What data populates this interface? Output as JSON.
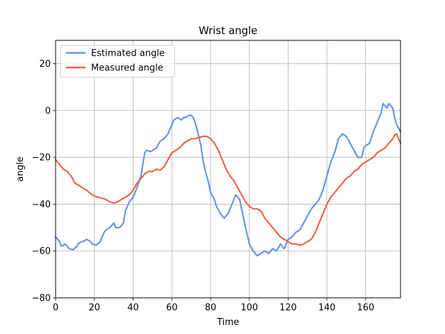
{
  "chart_data": {
    "type": "line",
    "title": "Wrist angle",
    "xlabel": "Time",
    "ylabel": "angle",
    "xlim": [
      0,
      178
    ],
    "ylim": [
      -80,
      30
    ],
    "xticks": [
      0,
      20,
      40,
      60,
      80,
      100,
      120,
      140,
      160
    ],
    "yticks": [
      -80,
      -60,
      -40,
      -20,
      0,
      20
    ],
    "grid": true,
    "legend_position": "top-left",
    "series": [
      {
        "name": "Estimated angle",
        "color": "#6495ed",
        "x": [
          0,
          2,
          3,
          5,
          7,
          9,
          11,
          12,
          14,
          16,
          18,
          19,
          21,
          23,
          25,
          26,
          28,
          30,
          31,
          33,
          35,
          36,
          38,
          40,
          42,
          44,
          46,
          47,
          49,
          50,
          52,
          54,
          56,
          58,
          59,
          61,
          63,
          64,
          65,
          66,
          67,
          68,
          69,
          70,
          71,
          72,
          73,
          75,
          76,
          77,
          79,
          80,
          82,
          83,
          85,
          87,
          89,
          91,
          93,
          95,
          97,
          98,
          100,
          102,
          104,
          106,
          108,
          110,
          112,
          114,
          116,
          118,
          120,
          122,
          124,
          126,
          128,
          130,
          132,
          134,
          136,
          138,
          140,
          142,
          144,
          146,
          148,
          150,
          152,
          154,
          156,
          158,
          159,
          160,
          162,
          164,
          166,
          168,
          169,
          170,
          171,
          172,
          173,
          174,
          175,
          176,
          178
        ],
        "y": [
          -54,
          -56,
          -58,
          -57,
          -59,
          -59.5,
          -58,
          -56.5,
          -56,
          -55,
          -56,
          -57,
          -57.5,
          -56,
          -52,
          -51,
          -50,
          -48,
          -50,
          -50,
          -48,
          -43,
          -39,
          -37,
          -33,
          -28,
          -18,
          -17,
          -17.5,
          -17,
          -16,
          -13,
          -12,
          -10,
          -8,
          -4,
          -3,
          -3.5,
          -4,
          -3,
          -3,
          -2.5,
          -2,
          -2,
          -3,
          -5,
          -8,
          -15,
          -21,
          -25,
          -31,
          -35,
          -38,
          -41,
          -44,
          -46,
          -44,
          -40,
          -36,
          -38,
          -46,
          -50,
          -57,
          -60,
          -62,
          -61,
          -60,
          -61,
          -59,
          -60,
          -57,
          -59,
          -55,
          -54,
          -52,
          -51,
          -48,
          -45,
          -42,
          -40,
          -38,
          -34,
          -28,
          -22,
          -18,
          -12,
          -10,
          -11,
          -14,
          -17,
          -20,
          -20,
          -16,
          -15,
          -14,
          -9,
          -5,
          -1,
          3,
          2,
          1,
          3,
          2,
          1,
          -3,
          -6,
          -9
        ]
      },
      {
        "name": "Measured angle",
        "color": "#f26444",
        "x": [
          0,
          2,
          4,
          6,
          8,
          10,
          12,
          14,
          16,
          18,
          20,
          22,
          24,
          26,
          28,
          30,
          32,
          34,
          36,
          38,
          40,
          42,
          44,
          46,
          48,
          50,
          52,
          54,
          56,
          58,
          60,
          62,
          64,
          66,
          68,
          70,
          72,
          74,
          76,
          78,
          80,
          82,
          84,
          86,
          88,
          90,
          92,
          94,
          96,
          98,
          100,
          102,
          104,
          106,
          108,
          110,
          112,
          114,
          116,
          118,
          120,
          122,
          124,
          126,
          128,
          130,
          132,
          134,
          136,
          138,
          140,
          142,
          144,
          146,
          148,
          150,
          152,
          154,
          156,
          158,
          160,
          162,
          164,
          166,
          168,
          170,
          172,
          174,
          175,
          176,
          178
        ],
        "y": [
          -21,
          -23,
          -25,
          -26,
          -28,
          -31,
          -32,
          -33,
          -34,
          -35.5,
          -36.5,
          -37,
          -37.5,
          -38,
          -39,
          -39.5,
          -39,
          -38,
          -37,
          -36,
          -34,
          -31,
          -29,
          -27,
          -26,
          -26,
          -25,
          -25.5,
          -24,
          -21,
          -18,
          -17,
          -16,
          -14,
          -13,
          -12,
          -12,
          -11.5,
          -11,
          -11,
          -12,
          -14,
          -17,
          -21,
          -25,
          -28,
          -30,
          -33,
          -36,
          -39,
          -41,
          -42,
          -42,
          -43,
          -46,
          -48,
          -50,
          -52,
          -54,
          -55,
          -56,
          -57,
          -57,
          -57.5,
          -57,
          -56,
          -55,
          -52,
          -48,
          -44,
          -40,
          -37,
          -35,
          -33,
          -31,
          -29,
          -28,
          -26,
          -25,
          -23,
          -22,
          -21,
          -20,
          -18,
          -17,
          -16,
          -14,
          -12,
          -10.5,
          -10,
          -14
        ]
      }
    ]
  }
}
